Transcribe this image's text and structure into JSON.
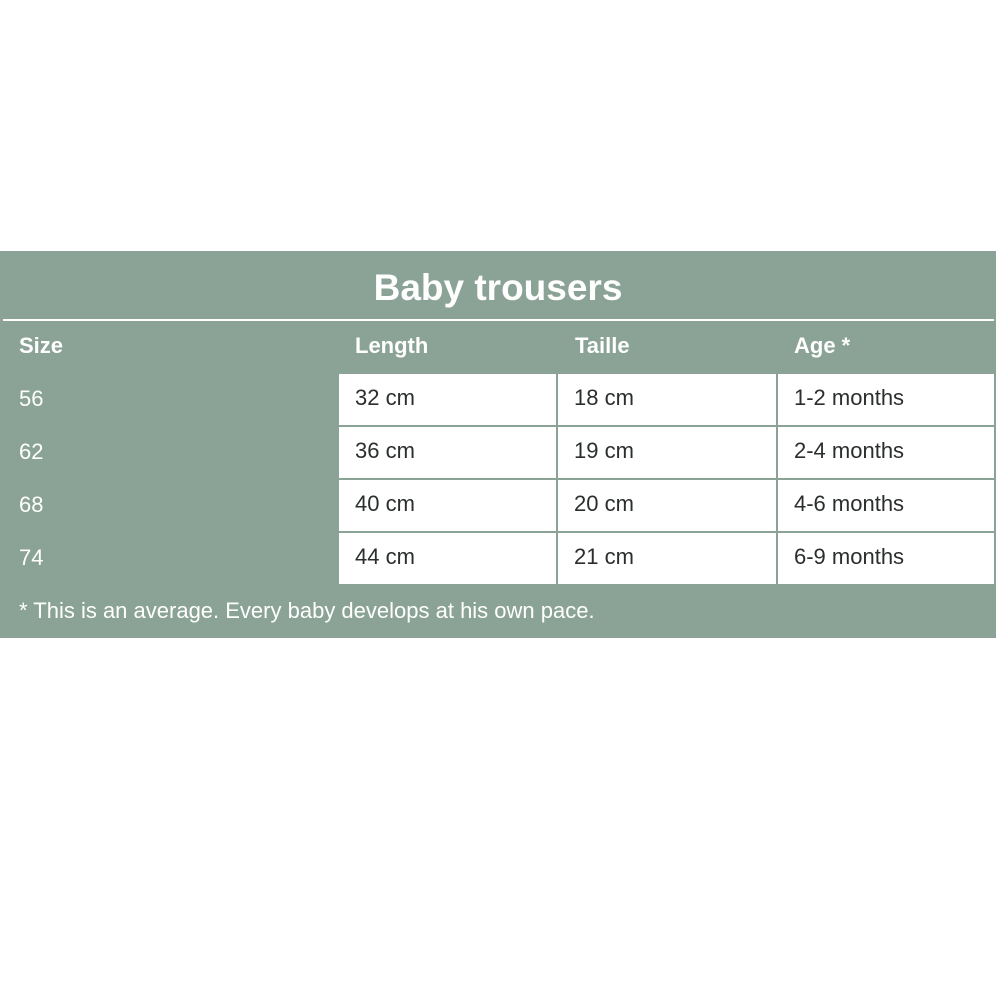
{
  "title": "Baby trousers",
  "headers": [
    "Size",
    "Length",
    "Taille",
    "Age *"
  ],
  "rows": [
    {
      "size": "56",
      "length": "32 cm",
      "taille": "18 cm",
      "age": "1-2 months"
    },
    {
      "size": "62",
      "length": "36 cm",
      "taille": "19 cm",
      "age": "2-4 months"
    },
    {
      "size": "68",
      "length": "40 cm",
      "taille": "20 cm",
      "age": "4-6 months"
    },
    {
      "size": "74",
      "length": "44 cm",
      "taille": "21 cm",
      "age": "6-9 months"
    }
  ],
  "footnote": "* This is an average. Every baby develops at his own pace.",
  "colors": {
    "panel": "#8aa396",
    "cell": "#ffffff"
  }
}
